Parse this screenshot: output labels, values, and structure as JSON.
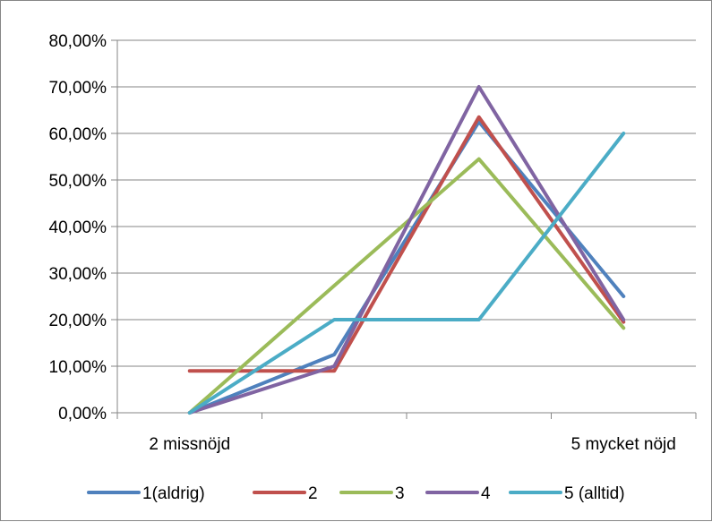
{
  "chart_data": {
    "type": "line",
    "categories": [
      "2 missnöjd",
      "",
      "",
      "5 mycket nöjd"
    ],
    "x_tick_labels": [
      "2 missnöjd",
      "5 mycket nöjd"
    ],
    "y_tick_labels": [
      "0,00%",
      "10,00%",
      "20,00%",
      "30,00%",
      "40,00%",
      "50,00%",
      "60,00%",
      "70,00%",
      "80,00%"
    ],
    "ylim": [
      0,
      80
    ],
    "grid": true,
    "legend_position": "bottom",
    "series": [
      {
        "name": "1(aldrig)",
        "color": "#4f81bd",
        "values": [
          0,
          12.5,
          62.5,
          25
        ]
      },
      {
        "name": "2",
        "color": "#c0504d",
        "values": [
          9,
          9,
          63.5,
          19.5
        ]
      },
      {
        "name": "3",
        "color": "#9bbb59",
        "values": [
          0,
          27.3,
          54.5,
          18.2
        ]
      },
      {
        "name": "4",
        "color": "#8064a2",
        "values": [
          0,
          10,
          70,
          20
        ]
      },
      {
        "name": "5 (alltid)",
        "color": "#4bacc6",
        "values": [
          0,
          20,
          20,
          60
        ]
      }
    ]
  }
}
